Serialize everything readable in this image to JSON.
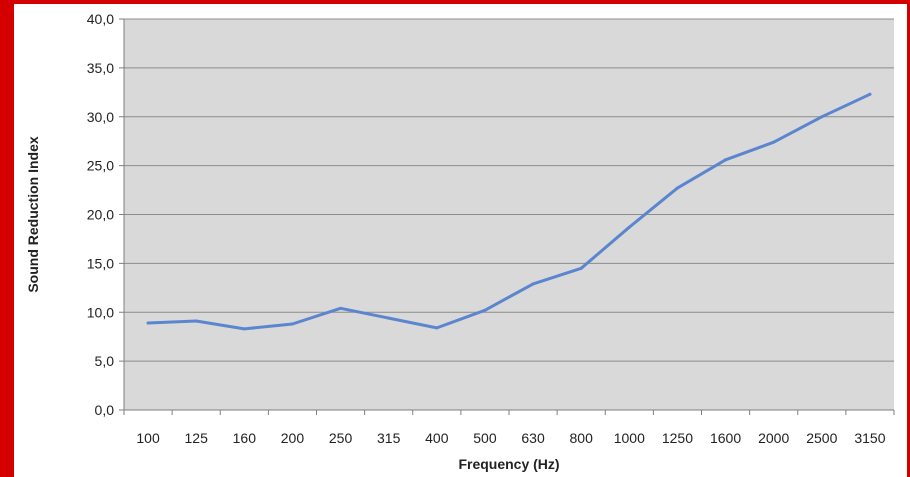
{
  "chart_data": {
    "type": "line",
    "xlabel": "Frequency (Hz)",
    "ylabel": "Sound Reduction Index",
    "categories": [
      "100",
      "125",
      "160",
      "200",
      "250",
      "315",
      "400",
      "500",
      "630",
      "800",
      "1000",
      "1250",
      "1600",
      "2000",
      "2500",
      "3150"
    ],
    "series": [
      {
        "values": [
          8.9,
          9.1,
          8.3,
          8.8,
          10.4,
          9.4,
          8.4,
          10.2,
          12.9,
          14.5,
          18.7,
          22.7,
          25.6,
          27.4,
          30.0,
          32.3
        ]
      }
    ],
    "ylim": [
      0,
      40
    ],
    "yticks": [
      "0,0",
      "5,0",
      "10,0",
      "15,0",
      "20,0",
      "25,0",
      "30,0",
      "35,0",
      "40,0"
    ],
    "grid": true,
    "colors": {
      "plot_background": "#d9d9d9",
      "line": "#5b86cf",
      "gridline": "#8c8c8c",
      "frame_border": "#d40000"
    }
  }
}
